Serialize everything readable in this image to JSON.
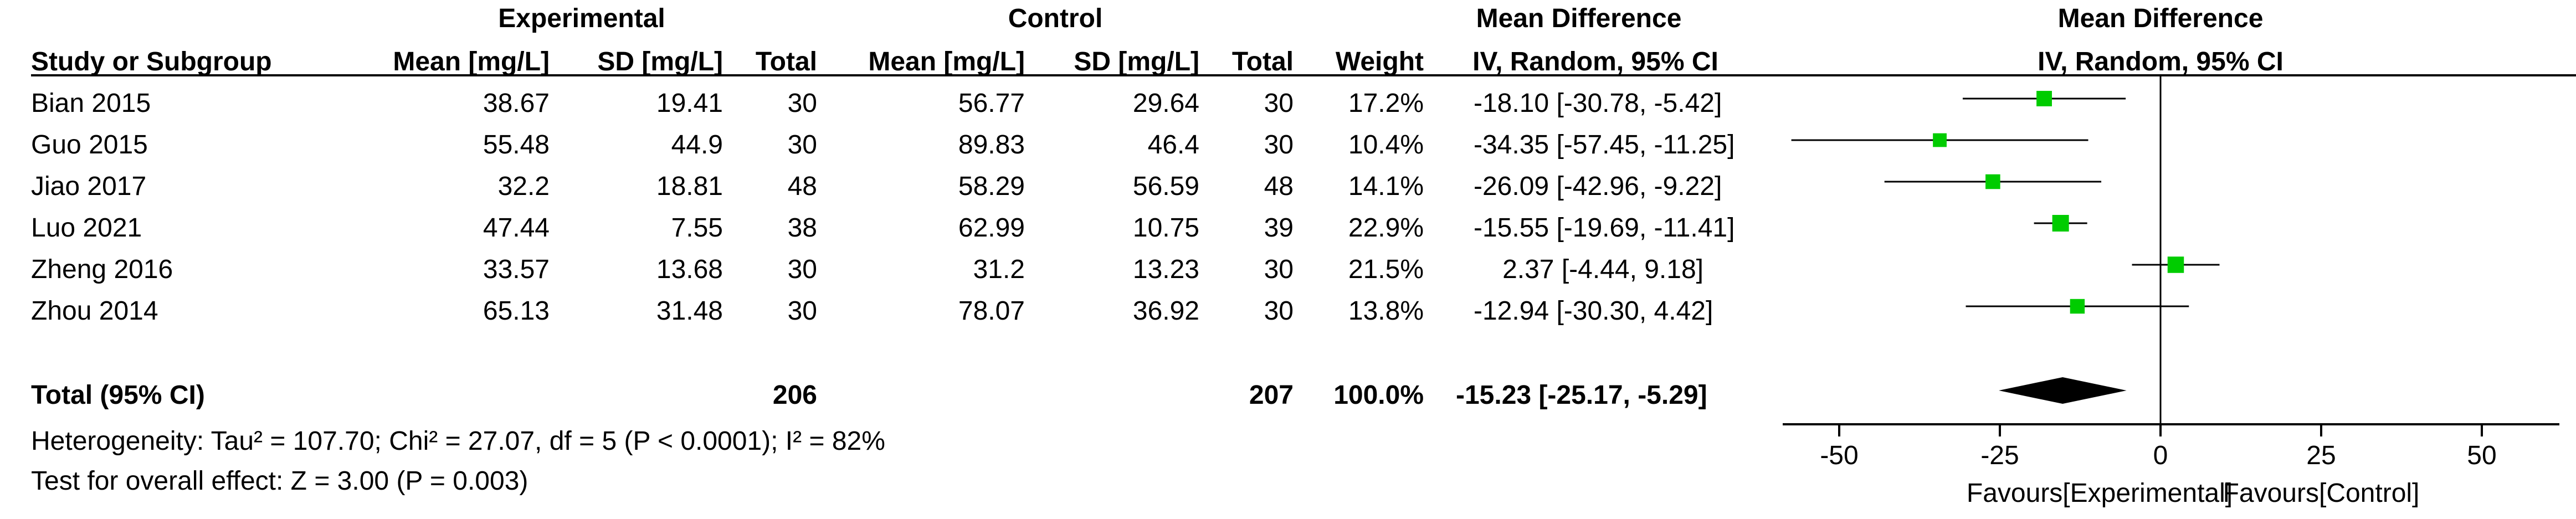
{
  "headers": {
    "experimental": "Experimental",
    "control": "Control",
    "mean_difference_1": "Mean Difference",
    "mean_difference_2": "Mean Difference",
    "study": "Study or Subgroup",
    "mean_exp": "Mean [mg/L]",
    "sd_exp": "SD [mg/L]",
    "total_exp": "Total",
    "mean_ctl": "Mean [mg/L]",
    "sd_ctl": "SD [mg/L]",
    "total_ctl": "Total",
    "weight": "Weight",
    "method_1": "IV, Random, 95% CI",
    "method_2": "IV, Random, 95% CI"
  },
  "studies": [
    {
      "name": "Bian 2015",
      "mean_e": "38.67",
      "sd_e": "19.41",
      "n_e": "30",
      "mean_c": "56.77",
      "sd_c": "29.64",
      "n_c": "30",
      "weight": "17.2%",
      "ci": "-18.10 [-30.78, -5.42]"
    },
    {
      "name": "Guo 2015",
      "mean_e": "55.48",
      "sd_e": "44.9",
      "n_e": "30",
      "mean_c": "89.83",
      "sd_c": "46.4",
      "n_c": "30",
      "weight": "10.4%",
      "ci": "-34.35 [-57.45, -11.25]"
    },
    {
      "name": "Jiao 2017",
      "mean_e": "32.2",
      "sd_e": "18.81",
      "n_e": "48",
      "mean_c": "58.29",
      "sd_c": "56.59",
      "n_c": "48",
      "weight": "14.1%",
      "ci": "-26.09 [-42.96, -9.22]"
    },
    {
      "name": "Luo 2021",
      "mean_e": "47.44",
      "sd_e": "7.55",
      "n_e": "38",
      "mean_c": "62.99",
      "sd_c": "10.75",
      "n_c": "39",
      "weight": "22.9%",
      "ci": "-15.55 [-19.69, -11.41]"
    },
    {
      "name": "Zheng 2016",
      "mean_e": "33.57",
      "sd_e": "13.68",
      "n_e": "30",
      "mean_c": "31.2",
      "sd_c": "13.23",
      "n_c": "30",
      "weight": "21.5%",
      "ci": "2.37 [-4.44, 9.18]"
    },
    {
      "name": "Zhou 2014",
      "mean_e": "65.13",
      "sd_e": "31.48",
      "n_e": "30",
      "mean_c": "78.07",
      "sd_c": "36.92",
      "n_c": "30",
      "weight": "13.8%",
      "ci": "-12.94 [-30.30, 4.42]"
    }
  ],
  "total": {
    "label": "Total (95% CI)",
    "n_e": "206",
    "n_c": "207",
    "weight": "100.0%",
    "ci": "-15.23 [-25.17, -5.29]"
  },
  "heterogeneity": "Heterogeneity: Tau² = 107.70; Chi² = 27.07, df = 5 (P < 0.0001); I² = 82%",
  "overall_effect": "Test for overall effect: Z = 3.00 (P = 0.003)",
  "chart_data": {
    "type": "scatter",
    "subtype": "forest-plot",
    "studies": [
      {
        "name": "Bian 2015",
        "md": -18.1,
        "lower": -30.78,
        "upper": -5.42,
        "weight": 17.2
      },
      {
        "name": "Guo 2015",
        "md": -34.35,
        "lower": -57.45,
        "upper": -11.25,
        "weight": 10.4
      },
      {
        "name": "Jiao 2017",
        "md": -26.09,
        "lower": -42.96,
        "upper": -9.22,
        "weight": 14.1
      },
      {
        "name": "Luo 2021",
        "md": -15.55,
        "lower": -19.69,
        "upper": -11.41,
        "weight": 22.9
      },
      {
        "name": "Zheng 2016",
        "md": 2.37,
        "lower": -4.44,
        "upper": 9.18,
        "weight": 21.5
      },
      {
        "name": "Zhou 2014",
        "md": -12.94,
        "lower": -30.3,
        "upper": 4.42,
        "weight": 13.8
      }
    ],
    "pooled": {
      "md": -15.23,
      "lower": -25.17,
      "upper": -5.29
    },
    "xlim": [
      -50,
      50
    ],
    "xticks": [
      -50,
      -25,
      0,
      25,
      50
    ],
    "xtick_labels": [
      "-50",
      "-25",
      "0",
      "25",
      "50"
    ],
    "xlabel_left": "Favours[Experimental]",
    "xlabel_right": "Favours[Control]",
    "colors": {
      "marker": "#00cc00",
      "diamond": "#000000",
      "lines": "#000000"
    }
  }
}
